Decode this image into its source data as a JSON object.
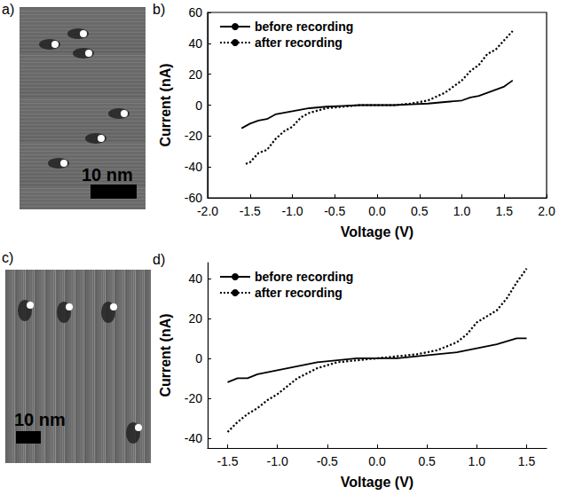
{
  "chart_data": [
    {
      "type": "line",
      "title": "b)",
      "x_label": "Voltage (V)",
      "y_label": "Current (nA)",
      "xlim": [
        -2.0,
        2.0
      ],
      "xticks": [
        {
          "value": -2.0,
          "label": "-2.0"
        },
        -1.5,
        {
          "value": -1.0,
          "label": "-1.0"
        },
        -0.5,
        {
          "value": 0.0,
          "label": "0.0"
        },
        0.5,
        {
          "value": 1.0,
          "label": "1.0"
        },
        1.5,
        {
          "value": 2.0,
          "label": "2.0"
        }
      ],
      "ylim": [
        -60,
        60
      ],
      "yticks": [
        -60,
        -40,
        -20,
        0,
        20,
        40,
        60
      ],
      "grid": false,
      "legend": "upper left",
      "series": [
        {
          "name": "before recording",
          "color": "#000000",
          "line_style": "solid",
          "x": [
            -1.6,
            -1.5,
            -1.4,
            -1.3,
            -1.2,
            -1.1,
            -1.0,
            -0.8,
            -0.6,
            -0.4,
            -0.2,
            0.0,
            0.2,
            0.4,
            0.6,
            0.8,
            1.0,
            1.1,
            1.2,
            1.3,
            1.4,
            1.5,
            1.6
          ],
          "values": [
            -15,
            -12,
            -10,
            -9,
            -6,
            -5,
            -4,
            -2,
            -1,
            -0.5,
            0,
            0,
            0,
            0.5,
            1,
            2,
            3,
            5,
            6,
            8,
            10,
            12,
            16
          ]
        },
        {
          "name": "after recording",
          "color": "#000000",
          "line_style": "dotted",
          "x": [
            -1.55,
            -1.5,
            -1.4,
            -1.3,
            -1.2,
            -1.1,
            -1.0,
            -0.9,
            -0.8,
            -0.6,
            -0.4,
            -0.2,
            0.0,
            0.2,
            0.4,
            0.6,
            0.8,
            0.9,
            1.0,
            1.1,
            1.2,
            1.3,
            1.4,
            1.5,
            1.6
          ],
          "values": [
            -38,
            -37,
            -31,
            -29,
            -22,
            -17,
            -14,
            -8,
            -5,
            -2,
            -1,
            0,
            0,
            0,
            1,
            3,
            8,
            12,
            16,
            22,
            26,
            33,
            36,
            42,
            48
          ]
        }
      ]
    },
    {
      "type": "line",
      "title": "d)",
      "x_label": "Voltage (V)",
      "y_label": "Current (nA)",
      "xlim": [
        -1.7,
        1.7
      ],
      "xticks": [
        -1.5,
        {
          "value": -1.0,
          "label": "-1.0"
        },
        -0.5,
        {
          "value": 0.0,
          "label": "0.0"
        },
        0.5,
        {
          "value": 1.0,
          "label": "1.0"
        },
        1.5
      ],
      "ylim": [
        -45,
        48
      ],
      "yticks": [
        -40,
        -20,
        0,
        20,
        40
      ],
      "grid": false,
      "legend": "upper left",
      "series": [
        {
          "name": "before recording",
          "color": "#000000",
          "line_style": "solid",
          "x": [
            -1.5,
            -1.4,
            -1.3,
            -1.2,
            -1.0,
            -0.8,
            -0.6,
            -0.4,
            -0.2,
            0.0,
            0.2,
            0.4,
            0.6,
            0.8,
            1.0,
            1.2,
            1.4,
            1.5
          ],
          "values": [
            -12,
            -10,
            -10,
            -8,
            -6,
            -4,
            -2,
            -1,
            0,
            0,
            0,
            1,
            2,
            3,
            5,
            7,
            10,
            10
          ]
        },
        {
          "name": "after recording",
          "color": "#000000",
          "line_style": "dotted",
          "x": [
            -1.5,
            -1.4,
            -1.3,
            -1.2,
            -1.1,
            -1.0,
            -0.9,
            -0.8,
            -0.6,
            -0.4,
            -0.2,
            0.0,
            0.2,
            0.4,
            0.6,
            0.8,
            0.9,
            1.0,
            1.1,
            1.2,
            1.3,
            1.4,
            1.5
          ],
          "values": [
            -37,
            -32,
            -28,
            -25,
            -21,
            -18,
            -14,
            -10,
            -5,
            -2,
            -1,
            0,
            1,
            2,
            4,
            8,
            12,
            18,
            21,
            24,
            30,
            38,
            45
          ]
        }
      ]
    }
  ],
  "images": [
    {
      "letter": "a)",
      "scale_bar": "10 nm"
    },
    {
      "letter": "c)",
      "scale_bar": "10 nm"
    }
  ]
}
